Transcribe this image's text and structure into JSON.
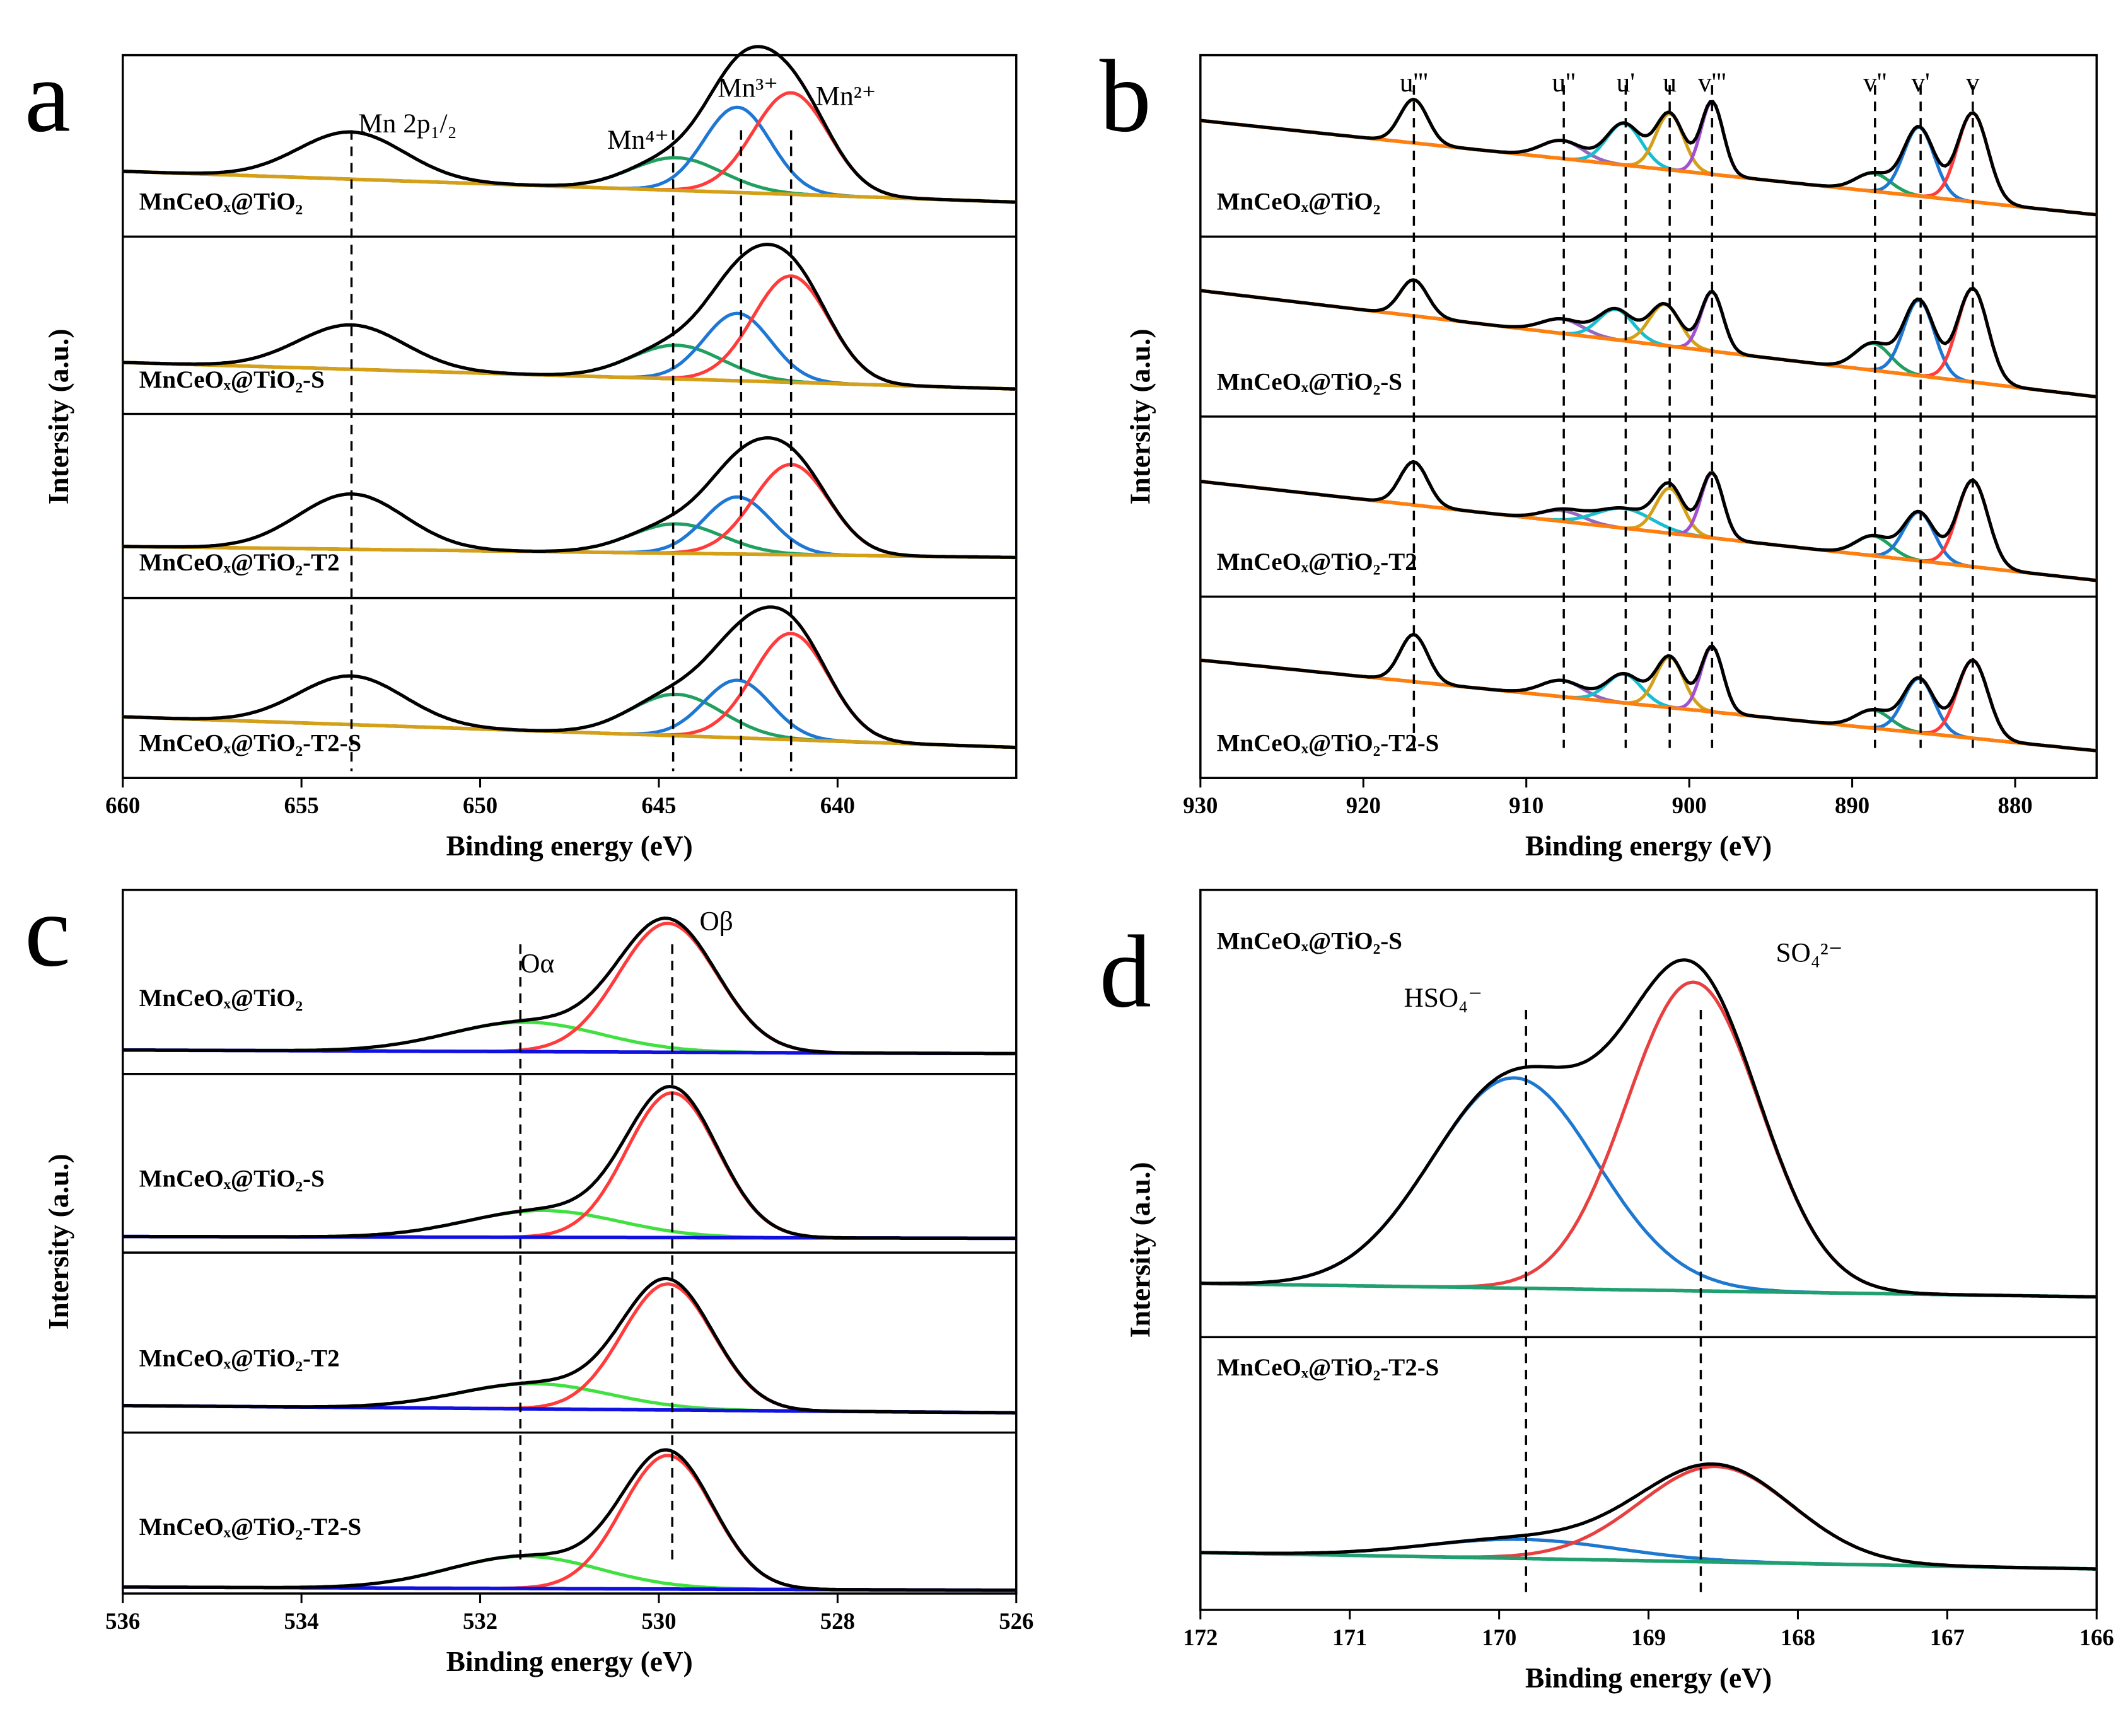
{
  "chart_data": [
    {
      "type": "line",
      "panel_label": "a",
      "xlabel": "Binding energy (eV)",
      "ylabel": "Intersity (a.u.)",
      "xlim": [
        660,
        635
      ],
      "xticks": [
        660,
        655,
        650,
        645,
        640
      ],
      "ylim": [
        0,
        100
      ],
      "envelope_color": "#000000",
      "background_color": "#d4a017",
      "spectra": [
        {
          "label": "MnCeOₓ@TiO₂",
          "background": [
            36,
            19
          ],
          "components": [
            {
              "color": "#7a3a8a",
              "center": 653.6,
              "height": 26,
              "fwhm": 3.5
            },
            {
              "color": "#20a060",
              "center": 644.5,
              "height": 18,
              "fwhm": 3
            },
            {
              "color": "#1f77d4",
              "center": 642.8,
              "height": 47,
              "fwhm": 2.2
            },
            {
              "color": "#ff3b3b",
              "center": 641.3,
              "height": 56,
              "fwhm": 2.5
            }
          ]
        },
        {
          "label": "MnCeOₓ@TiO₂-S",
          "background": [
            29,
            14
          ],
          "components": [
            {
              "color": "#7a3a8a",
              "center": 653.6,
              "height": 25,
              "fwhm": 3.5
            },
            {
              "color": "#20a060",
              "center": 644.5,
              "height": 19,
              "fwhm": 3
            },
            {
              "color": "#1f77d4",
              "center": 642.8,
              "height": 38,
              "fwhm": 2.2
            },
            {
              "color": "#ff3b3b",
              "center": 641.3,
              "height": 60,
              "fwhm": 2.5
            }
          ]
        },
        {
          "label": "MnCeOₓ@TiO₂-T2",
          "background": [
            28,
            22
          ],
          "components": [
            {
              "color": "#7a3a8a",
              "center": 653.6,
              "height": 30,
              "fwhm": 3.5
            },
            {
              "color": "#20a060",
              "center": 644.5,
              "height": 16,
              "fwhm": 3
            },
            {
              "color": "#1f77d4",
              "center": 642.8,
              "height": 31,
              "fwhm": 2.2
            },
            {
              "color": "#ff3b3b",
              "center": 641.3,
              "height": 49,
              "fwhm": 2.5
            }
          ]
        },
        {
          "label": "MnCeOₓ@TiO₂-T2-S",
          "background": [
            34,
            17
          ],
          "components": [
            {
              "color": "#7a3a8a",
              "center": 653.6,
              "height": 27,
              "fwhm": 3.5
            },
            {
              "color": "#20a060",
              "center": 644.5,
              "height": 23,
              "fwhm": 3
            },
            {
              "color": "#1f77d4",
              "center": 642.8,
              "height": 32,
              "fwhm": 2.2
            },
            {
              "color": "#ff3b3b",
              "center": 641.3,
              "height": 59,
              "fwhm": 2.5
            }
          ]
        }
      ],
      "markers": [
        {
          "label": "Mn 2p₁/₂",
          "x": 653.6
        },
        {
          "label": "Mn⁴⁺",
          "x": 644.6
        },
        {
          "label": "Mn³⁺",
          "x": 642.7
        },
        {
          "label": "Mn²⁺",
          "x": 641.3
        }
      ]
    },
    {
      "type": "line",
      "panel_label": "b",
      "xlabel": "Binding energy (eV)",
      "ylabel": "Intersity (a.u.)",
      "xlim": [
        930,
        875
      ],
      "xticks": [
        930,
        920,
        910,
        900,
        890,
        880
      ],
      "ylim": [
        0,
        100
      ],
      "envelope_color": "#000000",
      "background_color": "#ff7f0e",
      "spectra": [
        {
          "label": "MnCeOₓ@TiO₂",
          "background": [
            64,
            12
          ],
          "components": [
            {
              "color": "#6b8e23",
              "center": 916.9,
              "height": 24,
              "fwhm": 2
            },
            {
              "color": "#9467bd",
              "center": 907.8,
              "height": 10,
              "fwhm": 3
            },
            {
              "color": "#17becf",
              "center": 904,
              "height": 23,
              "fwhm": 2.5
            },
            {
              "color": "#d4a017",
              "center": 901.2,
              "height": 31,
              "fwhm": 2
            },
            {
              "color": "#a050d0",
              "center": 898.6,
              "height": 40,
              "fwhm": 1.6
            },
            {
              "color": "#20a060",
              "center": 888.7,
              "height": 10,
              "fwhm": 2.5
            },
            {
              "color": "#1f77d4",
              "center": 885.9,
              "height": 38,
              "fwhm": 2.2
            },
            {
              "color": "#ff3b3b",
              "center": 882.6,
              "height": 49,
              "fwhm": 2.2
            }
          ]
        },
        {
          "label": "MnCeOₓ@TiO₂-S",
          "background": [
            70,
            11
          ],
          "components": [
            {
              "color": "#6b8e23",
              "center": 916.9,
              "height": 20,
              "fwhm": 2
            },
            {
              "color": "#9467bd",
              "center": 907.8,
              "height": 8,
              "fwhm": 3
            },
            {
              "color": "#17becf",
              "center": 904.5,
              "height": 17,
              "fwhm": 2.5
            },
            {
              "color": "#d4a017",
              "center": 901.5,
              "height": 23,
              "fwhm": 2.2
            },
            {
              "color": "#a050d0",
              "center": 898.6,
              "height": 33,
              "fwhm": 1.6
            },
            {
              "color": "#20a060",
              "center": 888.7,
              "height": 15,
              "fwhm": 2.5
            },
            {
              "color": "#1f77d4",
              "center": 885.9,
              "height": 42,
              "fwhm": 2.2
            },
            {
              "color": "#ff3b3b",
              "center": 882.6,
              "height": 52,
              "fwhm": 2.2
            }
          ]
        },
        {
          "label": "MnCeOₓ@TiO₂-T2",
          "background": [
            64,
            9
          ],
          "components": [
            {
              "color": "#6b8e23",
              "center": 916.9,
              "height": 24,
              "fwhm": 2
            },
            {
              "color": "#9467bd",
              "center": 907.8,
              "height": 6,
              "fwhm": 3
            },
            {
              "color": "#17becf",
              "center": 904,
              "height": 11,
              "fwhm": 4
            },
            {
              "color": "#d4a017",
              "center": 901.2,
              "height": 25,
              "fwhm": 2
            },
            {
              "color": "#a050d0",
              "center": 898.6,
              "height": 36,
              "fwhm": 1.6
            },
            {
              "color": "#20a060",
              "center": 888.7,
              "height": 11,
              "fwhm": 2.5
            },
            {
              "color": "#1f77d4",
              "center": 885.9,
              "height": 27,
              "fwhm": 2.2
            },
            {
              "color": "#ff3b3b",
              "center": 882.6,
              "height": 48,
              "fwhm": 2.2
            }
          ]
        },
        {
          "label": "MnCeOₓ@TiO₂-T2-S",
          "background": [
            65,
            15
          ],
          "components": [
            {
              "color": "#6b8e23",
              "center": 916.9,
              "height": 26,
              "fwhm": 2
            },
            {
              "color": "#9467bd",
              "center": 907.8,
              "height": 9,
              "fwhm": 3
            },
            {
              "color": "#17becf",
              "center": 904,
              "height": 16,
              "fwhm": 2.5
            },
            {
              "color": "#d4a017",
              "center": 901.2,
              "height": 28,
              "fwhm": 2
            },
            {
              "color": "#a050d0",
              "center": 898.6,
              "height": 36,
              "fwhm": 1.6
            },
            {
              "color": "#20a060",
              "center": 888.7,
              "height": 10,
              "fwhm": 2.5
            },
            {
              "color": "#1f77d4",
              "center": 885.9,
              "height": 30,
              "fwhm": 2.2
            },
            {
              "color": "#ff3b3b",
              "center": 882.6,
              "height": 43,
              "fwhm": 2.2
            }
          ]
        }
      ],
      "markers": [
        {
          "label": "u'''",
          "x": 916.9
        },
        {
          "label": "u''",
          "x": 907.7
        },
        {
          "label": "u'",
          "x": 903.9
        },
        {
          "label": "u",
          "x": 901.2
        },
        {
          "label": "v'''",
          "x": 898.6
        },
        {
          "label": "v''",
          "x": 888.6
        },
        {
          "label": "v'",
          "x": 885.8
        },
        {
          "label": "v",
          "x": 882.6
        }
      ]
    },
    {
      "type": "line",
      "panel_label": "c",
      "xlabel": "Binding energy (eV)",
      "ylabel": "Intersity (a.u.)",
      "xlim": [
        536,
        526
      ],
      "xticks": [
        536,
        534,
        532,
        530,
        528,
        526
      ],
      "ylim": [
        0,
        100
      ],
      "envelope_color": "#000000",
      "background_color": "#1010e0",
      "spectra": [
        {
          "label": "MnCeOₓ@TiO₂",
          "background": [
            13,
            11
          ],
          "components": [
            {
              "color": "#40e040",
              "center": 531.5,
              "height": 16,
              "fwhm": 2
            },
            {
              "color": "#ff3b3b",
              "center": 529.9,
              "height": 70,
              "fwhm": 1.3
            }
          ]
        },
        {
          "label": "MnCeOₓ@TiO₂-S",
          "background": [
            9,
            8
          ],
          "components": [
            {
              "color": "#40e040",
              "center": 531.3,
              "height": 15,
              "fwhm": 2
            },
            {
              "color": "#ff3b3b",
              "center": 529.85,
              "height": 81,
              "fwhm": 1.2
            }
          ]
        },
        {
          "label": "MnCeOₓ@TiO₂-T2",
          "background": [
            15,
            11
          ],
          "components": [
            {
              "color": "#40e040",
              "center": 531.4,
              "height": 14,
              "fwhm": 2
            },
            {
              "color": "#ff3b3b",
              "center": 529.9,
              "height": 70,
              "fwhm": 1.2
            }
          ]
        },
        {
          "label": "MnCeOₓ@TiO₂-T2-S",
          "background": [
            4,
            2
          ],
          "components": [
            {
              "color": "#40e040",
              "center": 531.5,
              "height": 20,
              "fwhm": 2
            },
            {
              "color": "#ff3b3b",
              "center": 529.9,
              "height": 83,
              "fwhm": 1.2
            }
          ]
        }
      ],
      "markers": [
        {
          "label": "Oα",
          "x": 531.55
        },
        {
          "label": "Oβ",
          "x": 529.85
        }
      ]
    },
    {
      "type": "line",
      "panel_label": "d",
      "xlabel": "Binding energy (eV)",
      "ylabel": "Intersity (a.u.)",
      "xlim": [
        172,
        166
      ],
      "xticks": [
        172,
        171,
        170,
        169,
        168,
        167,
        166
      ],
      "ylim": [
        0,
        100
      ],
      "envelope_color": "#000000",
      "background_color": "#20a070",
      "spectra": [
        {
          "label": "MnCeOₓ@TiO₂-S",
          "background": [
            12,
            9
          ],
          "components": [
            {
              "color": "#1e78d0",
              "center": 169.9,
              "height": 47,
              "fwhm": 1.3
            },
            {
              "color": "#e84040",
              "center": 168.7,
              "height": 69,
              "fwhm": 1.05
            }
          ]
        },
        {
          "label": "MnCeOₓ@TiO₂-T2-S",
          "background": [
            21,
            15
          ],
          "components": [
            {
              "color": "#1e78d0",
              "center": 169.85,
              "height": 7,
              "fwhm": 1.5
            },
            {
              "color": "#e84040",
              "center": 168.55,
              "height": 35,
              "fwhm": 1.2
            }
          ]
        }
      ],
      "markers": [
        {
          "label": "HSO₄⁻",
          "x": 169.82
        },
        {
          "label": "SO₄²⁻",
          "x": 168.65
        }
      ]
    }
  ]
}
